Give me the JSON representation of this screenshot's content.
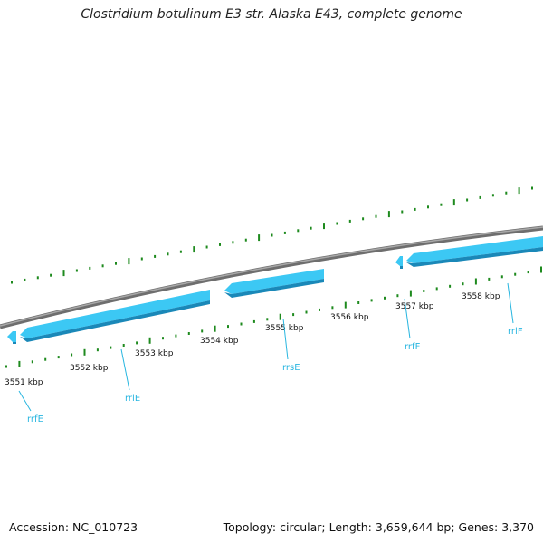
{
  "title": "Clostridium botulinum E3 str. Alaska E43, complete genome",
  "footer": {
    "accession": "Accession: NC_010723",
    "summary": "Topology: circular; Length: 3,659,644 bp; Genes: 3,370"
  },
  "colors": {
    "backbone": "#808080",
    "gene_fill": "#3cc8f4",
    "gene_edge": "#1a88b8",
    "tick": "#1e8a1e",
    "gene_label": "#29b6e0"
  },
  "scale_labels": [
    "3551 kbp",
    "3552 kbp",
    "3553 kbp",
    "3554 kbp",
    "3555 kbp",
    "3556 kbp",
    "3557 kbp",
    "3558 kbp"
  ],
  "genes": [
    {
      "name": "rrfE"
    },
    {
      "name": "rrlE"
    },
    {
      "name": "rrsE"
    },
    {
      "name": "rrfF"
    },
    {
      "name": "rrlF"
    }
  ]
}
